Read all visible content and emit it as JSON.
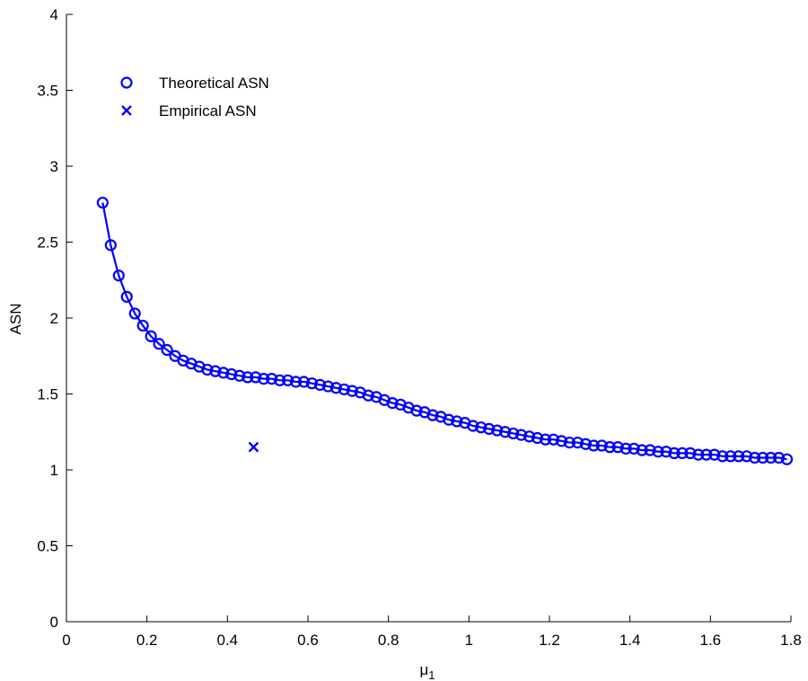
{
  "chart_data": {
    "type": "scatter",
    "title": "",
    "xlabel": "μ",
    "xlabel_subscript": "1",
    "ylabel": "ASN",
    "xlim": [
      0,
      1.8
    ],
    "ylim": [
      0,
      4
    ],
    "xticks": [
      "0",
      "0.2",
      "0.4",
      "0.6",
      "0.8",
      "1",
      "1.2",
      "1.4",
      "1.6",
      "1.8"
    ],
    "yticks": [
      "0",
      "0.5",
      "1",
      "1.5",
      "2",
      "2.5",
      "3",
      "3.5",
      "4"
    ],
    "grid": false,
    "legend_position": "top-left",
    "color": "#0000ff",
    "series": [
      {
        "name": "Theoretical ASN",
        "marker": "circle",
        "line": true,
        "x": [
          0.09,
          0.11,
          0.13,
          0.15,
          0.17,
          0.19,
          0.21,
          0.23,
          0.25,
          0.27,
          0.29,
          0.31,
          0.33,
          0.35,
          0.37,
          0.39,
          0.41,
          0.43,
          0.45,
          0.47,
          0.49,
          0.51,
          0.53,
          0.55,
          0.57,
          0.59,
          0.61,
          0.63,
          0.65,
          0.67,
          0.69,
          0.71,
          0.73,
          0.75,
          0.77,
          0.79,
          0.81,
          0.83,
          0.85,
          0.87,
          0.89,
          0.91,
          0.93,
          0.95,
          0.97,
          0.99,
          1.01,
          1.03,
          1.05,
          1.07,
          1.09,
          1.11,
          1.13,
          1.15,
          1.17,
          1.19,
          1.21,
          1.23,
          1.25,
          1.27,
          1.29,
          1.31,
          1.33,
          1.35,
          1.37,
          1.39,
          1.41,
          1.43,
          1.45,
          1.47,
          1.49,
          1.51,
          1.53,
          1.55,
          1.57,
          1.59,
          1.61,
          1.63,
          1.65,
          1.67,
          1.69,
          1.71,
          1.73,
          1.75,
          1.77,
          1.79
        ],
        "y": [
          2.76,
          2.48,
          2.28,
          2.14,
          2.03,
          1.95,
          1.88,
          1.83,
          1.79,
          1.75,
          1.72,
          1.7,
          1.68,
          1.66,
          1.65,
          1.64,
          1.63,
          1.62,
          1.61,
          1.61,
          1.6,
          1.6,
          1.59,
          1.59,
          1.58,
          1.58,
          1.57,
          1.56,
          1.55,
          1.54,
          1.53,
          1.52,
          1.51,
          1.49,
          1.48,
          1.46,
          1.44,
          1.43,
          1.41,
          1.39,
          1.38,
          1.36,
          1.35,
          1.33,
          1.32,
          1.31,
          1.29,
          1.28,
          1.27,
          1.26,
          1.25,
          1.24,
          1.23,
          1.22,
          1.21,
          1.2,
          1.2,
          1.19,
          1.18,
          1.18,
          1.17,
          1.16,
          1.16,
          1.15,
          1.15,
          1.14,
          1.14,
          1.13,
          1.13,
          1.12,
          1.12,
          1.11,
          1.11,
          1.11,
          1.1,
          1.1,
          1.1,
          1.09,
          1.09,
          1.09,
          1.09,
          1.08,
          1.08,
          1.08,
          1.08,
          1.07
        ]
      },
      {
        "name": "Empirical ASN",
        "marker": "x",
        "line": false,
        "x": [
          0.465
        ],
        "y": [
          1.15
        ]
      }
    ]
  }
}
